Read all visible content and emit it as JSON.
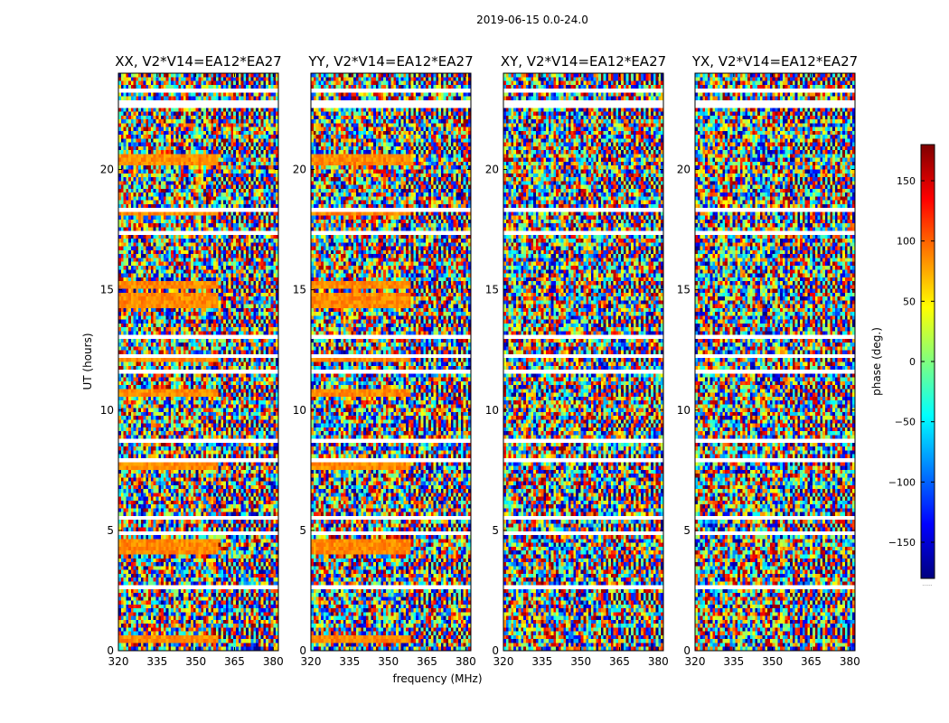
{
  "figure": {
    "suptitle": "2019-06-15 0.0-24.0",
    "xlabel": "frequency (MHz)",
    "ylabel": "UT (hours)",
    "colorbar_label": "phase (deg.)",
    "colorbar_extra": "......"
  },
  "colors": {
    "colormap": [
      "#00007f",
      "#0000ff",
      "#007fff",
      "#00ffff",
      "#7fff7f",
      "#ffff00",
      "#ff7f00",
      "#ff0000",
      "#7f0000"
    ],
    "axis": "#000000",
    "background": "#ffffff"
  },
  "chart_data": [
    {
      "type": "heatmap",
      "title": "XX, V2*V14=EA12*EA27",
      "xlabel": "frequency (MHz)",
      "ylabel": "UT (hours)",
      "xlim": [
        320,
        382
      ],
      "ylim": [
        0,
        24
      ],
      "xticks": [
        320,
        335,
        350,
        365,
        380
      ],
      "yticks": [
        0,
        5,
        10,
        15,
        20
      ],
      "value": "visibility phase (deg)",
      "clim": [
        -180,
        180
      ],
      "coherent_ut_bands": [
        [
          0.3,
          0.6
        ],
        [
          4.0,
          4.6
        ],
        [
          7.5,
          7.9
        ],
        [
          10.5,
          10.9
        ],
        [
          12.0,
          12.3
        ],
        [
          14.3,
          14.8
        ],
        [
          15.0,
          15.3
        ],
        [
          18.1,
          18.4
        ],
        [
          20.2,
          20.6
        ]
      ]
    },
    {
      "type": "heatmap",
      "title": "YY, V2*V14=EA12*EA27",
      "xlabel": "frequency (MHz)",
      "ylabel": "UT (hours)",
      "xlim": [
        320,
        382
      ],
      "ylim": [
        0,
        24
      ],
      "xticks": [
        320,
        335,
        350,
        365,
        380
      ],
      "yticks": [
        0,
        5,
        10,
        15,
        20
      ],
      "value": "visibility phase (deg)",
      "clim": [
        -180,
        180
      ],
      "coherent_ut_bands": [
        [
          0.3,
          0.6
        ],
        [
          4.0,
          4.6
        ],
        [
          7.5,
          7.9
        ],
        [
          10.5,
          10.9
        ],
        [
          12.0,
          12.3
        ],
        [
          14.3,
          14.8
        ],
        [
          15.0,
          15.3
        ],
        [
          18.1,
          18.4
        ],
        [
          20.2,
          20.6
        ]
      ]
    },
    {
      "type": "heatmap",
      "title": "XY, V2*V14=EA12*EA27",
      "xlabel": "frequency (MHz)",
      "ylabel": "UT (hours)",
      "xlim": [
        320,
        382
      ],
      "ylim": [
        0,
        24
      ],
      "xticks": [
        320,
        335,
        350,
        365,
        380
      ],
      "yticks": [
        0,
        5,
        10,
        15,
        20
      ],
      "value": "visibility phase (deg)",
      "clim": [
        -180,
        180
      ],
      "coherent_ut_bands": []
    },
    {
      "type": "heatmap",
      "title": "YX, V2*V14=EA12*EA27",
      "xlabel": "frequency (MHz)",
      "ylabel": "UT (hours)",
      "xlim": [
        320,
        382
      ],
      "ylim": [
        0,
        24
      ],
      "xticks": [
        320,
        335,
        350,
        365,
        380
      ],
      "yticks": [
        0,
        5,
        10,
        15,
        20
      ],
      "value": "visibility phase (deg)",
      "clim": [
        -180,
        180
      ],
      "coherent_ut_bands": []
    }
  ],
  "colorbar": {
    "range": [
      -180,
      180
    ],
    "ticks": [
      150,
      100,
      50,
      0,
      -50,
      -100,
      -150
    ],
    "tick_labels": [
      "150",
      "100",
      "50",
      "0",
      "−50",
      "−100",
      "−150"
    ]
  },
  "gaps_ut": [
    [
      2.5,
      2.75
    ],
    [
      4.85,
      4.95
    ],
    [
      5.5,
      5.58
    ],
    [
      6.7,
      6.8
    ],
    [
      7.9,
      8.0
    ],
    [
      8.6,
      8.75
    ],
    [
      9.4,
      9.48
    ],
    [
      11.5,
      11.6
    ],
    [
      12.1,
      12.25
    ],
    [
      13.0,
      13.1
    ],
    [
      16.9,
      17.0
    ],
    [
      17.3,
      17.5
    ],
    [
      18.3,
      18.4
    ],
    [
      22.6,
      22.8
    ],
    [
      23.2,
      23.4
    ],
    [
      24.0,
      24.0
    ]
  ]
}
